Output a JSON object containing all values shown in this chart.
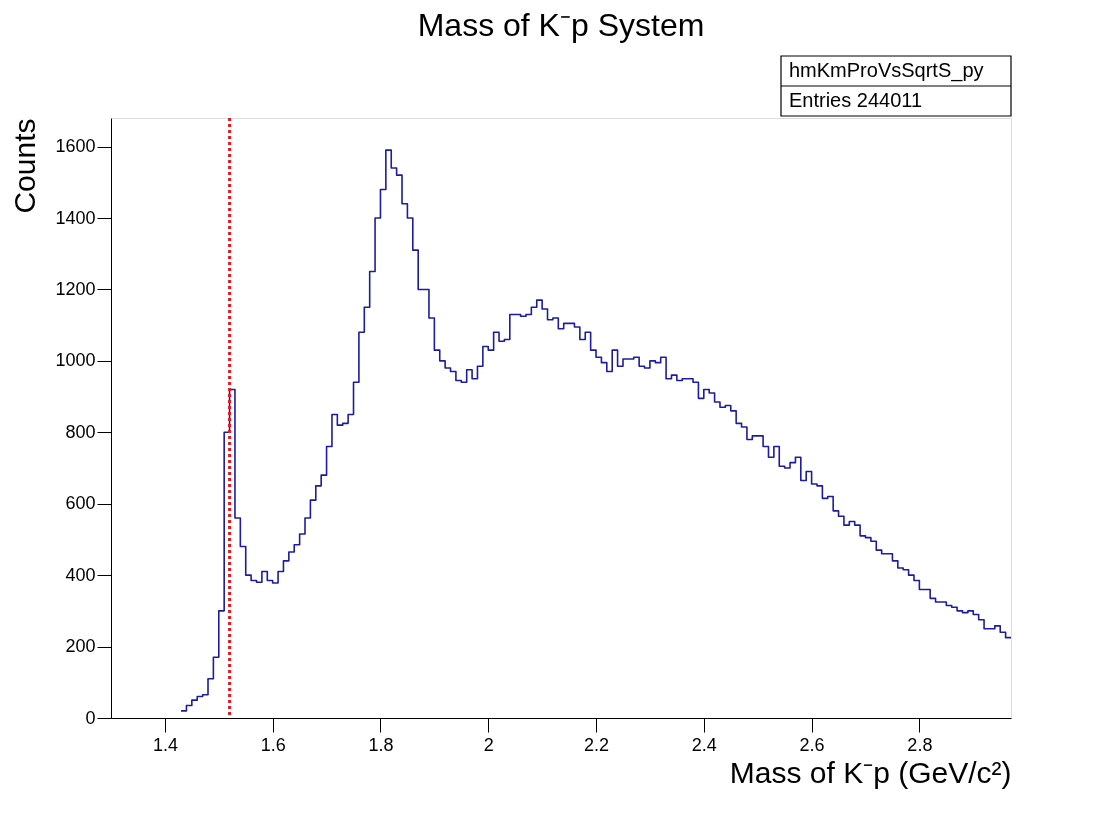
{
  "chart_data": {
    "type": "histogram",
    "title": "Mass of K⁻p System",
    "xlabel": "Mass of K⁻p (GeV/c²)",
    "ylabel": "Counts",
    "bins": [
      1.43,
      1.44,
      1.45,
      1.46,
      1.47,
      1.48,
      1.49,
      1.5,
      1.51,
      1.52,
      1.53,
      1.54,
      1.55,
      1.56,
      1.57,
      1.58,
      1.59,
      1.6,
      1.61,
      1.62,
      1.63,
      1.64,
      1.65,
      1.66,
      1.67,
      1.68,
      1.69,
      1.7,
      1.71,
      1.72,
      1.73,
      1.74,
      1.75,
      1.76,
      1.77,
      1.78,
      1.79,
      1.8,
      1.81,
      1.82,
      1.83,
      1.84,
      1.85,
      1.86,
      1.87,
      1.88,
      1.89,
      1.9,
      1.91,
      1.92,
      1.93,
      1.94,
      1.95,
      1.96,
      1.97,
      1.98,
      1.99,
      2.0,
      2.01,
      2.02,
      2.03,
      2.04,
      2.05,
      2.06,
      2.07,
      2.08,
      2.09,
      2.1,
      2.11,
      2.12,
      2.13,
      2.14,
      2.15,
      2.16,
      2.17,
      2.18,
      2.19,
      2.2,
      2.21,
      2.22,
      2.23,
      2.24,
      2.25,
      2.26,
      2.27,
      2.28,
      2.29,
      2.3,
      2.31,
      2.32,
      2.33,
      2.34,
      2.35,
      2.36,
      2.37,
      2.38,
      2.39,
      2.4,
      2.41,
      2.42,
      2.43,
      2.44,
      2.45,
      2.46,
      2.47,
      2.48,
      2.49,
      2.5,
      2.51,
      2.52,
      2.53,
      2.54,
      2.55,
      2.56,
      2.57,
      2.58,
      2.59,
      2.6,
      2.61,
      2.62,
      2.63,
      2.64,
      2.65,
      2.66,
      2.67,
      2.68,
      2.69,
      2.7,
      2.71,
      2.72,
      2.73,
      2.74,
      2.75,
      2.76,
      2.77,
      2.78,
      2.79,
      2.8,
      2.81,
      2.82,
      2.83,
      2.84,
      2.85,
      2.86,
      2.87,
      2.88,
      2.89,
      2.9,
      2.91,
      2.92,
      2.93,
      2.94,
      2.95,
      2.96,
      2.97
    ],
    "values": [
      20,
      35,
      50,
      60,
      65,
      110,
      170,
      300,
      800,
      920,
      560,
      480,
      400,
      385,
      380,
      410,
      385,
      378,
      410,
      440,
      465,
      485,
      515,
      560,
      610,
      650,
      680,
      760,
      850,
      820,
      825,
      850,
      940,
      1080,
      1150,
      1250,
      1400,
      1480,
      1590,
      1540,
      1520,
      1440,
      1400,
      1310,
      1200,
      1200,
      1120,
      1030,
      1000,
      980,
      970,
      945,
      940,
      975,
      950,
      985,
      1040,
      1030,
      1080,
      1055,
      1060,
      1130,
      1130,
      1125,
      1130,
      1150,
      1170,
      1145,
      1115,
      1120,
      1090,
      1105,
      1105,
      1095,
      1060,
      1080,
      1030,
      1010,
      995,
      970,
      1030,
      985,
      1005,
      1005,
      1010,
      985,
      980,
      1000,
      995,
      1010,
      950,
      960,
      945,
      950,
      950,
      940,
      895,
      920,
      910,
      885,
      870,
      875,
      860,
      825,
      815,
      780,
      790,
      790,
      760,
      730,
      760,
      705,
      700,
      715,
      730,
      665,
      690,
      655,
      650,
      615,
      620,
      580,
      565,
      540,
      550,
      540,
      510,
      505,
      495,
      470,
      460,
      460,
      440,
      420,
      415,
      400,
      385,
      360,
      360,
      335,
      325,
      325,
      315,
      310,
      300,
      295,
      300,
      290,
      275,
      250,
      250,
      258,
      240,
      225
    ],
    "color": "#1c1ca0",
    "line_style": "solid",
    "xlim": [
      1.3,
      2.97
    ],
    "ylim": [
      0,
      1680
    ],
    "xticks": [
      1.4,
      1.6,
      1.8,
      2,
      2.2,
      2.4,
      2.6,
      2.8
    ],
    "yticks": [
      0,
      200,
      400,
      600,
      800,
      1000,
      1200,
      1400,
      1600
    ],
    "ref_lines": [
      {
        "axis": "x",
        "value": 1.52,
        "color": "#e8191b",
        "line_style": "dotted"
      }
    ],
    "annotations": [
      "hmKmProVsSqrtS_py",
      "Entries 244011"
    ],
    "grid": false
  }
}
